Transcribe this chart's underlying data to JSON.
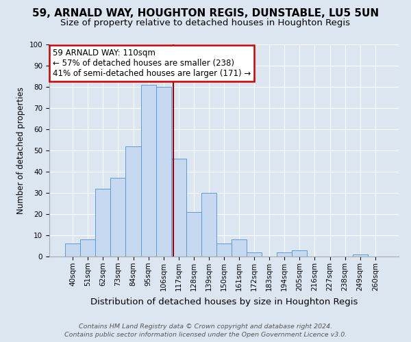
{
  "title": "59, ARNALD WAY, HOUGHTON REGIS, DUNSTABLE, LU5 5UN",
  "subtitle": "Size of property relative to detached houses in Houghton Regis",
  "xlabel": "Distribution of detached houses by size in Houghton Regis",
  "ylabel": "Number of detached properties",
  "categories": [
    "40sqm",
    "51sqm",
    "62sqm",
    "73sqm",
    "84sqm",
    "95sqm",
    "106sqm",
    "117sqm",
    "128sqm",
    "139sqm",
    "150sqm",
    "161sqm",
    "172sqm",
    "183sqm",
    "194sqm",
    "205sqm",
    "216sqm",
    "227sqm",
    "238sqm",
    "249sqm",
    "260sqm"
  ],
  "values": [
    6,
    8,
    32,
    37,
    52,
    81,
    80,
    46,
    21,
    30,
    6,
    8,
    2,
    0,
    2,
    3,
    0,
    0,
    0,
    1,
    0
  ],
  "bar_color": "#c6d9f0",
  "bar_edge_color": "#5b9bd5",
  "bar_width": 1.0,
  "red_line_x": 6.636,
  "annotation_text": "59 ARNALD WAY: 110sqm\n← 57% of detached houses are smaller (238)\n41% of semi-detached houses are larger (171) →",
  "annotation_box_color": "#ffffff",
  "annotation_box_edge_color": "#cc0000",
  "ylim": [
    0,
    100
  ],
  "yticks": [
    0,
    10,
    20,
    30,
    40,
    50,
    60,
    70,
    80,
    90,
    100
  ],
  "background_color": "#dce6f1",
  "plot_bg_color": "#dce6f1",
  "footer_line1": "Contains HM Land Registry data © Crown copyright and database right 2024.",
  "footer_line2": "Contains public sector information licensed under the Open Government Licence v3.0.",
  "title_fontsize": 11,
  "subtitle_fontsize": 9.5,
  "xlabel_fontsize": 9.5,
  "ylabel_fontsize": 8.5,
  "tick_fontsize": 7.5,
  "footer_fontsize": 6.8,
  "ann_fontsize": 8.5
}
